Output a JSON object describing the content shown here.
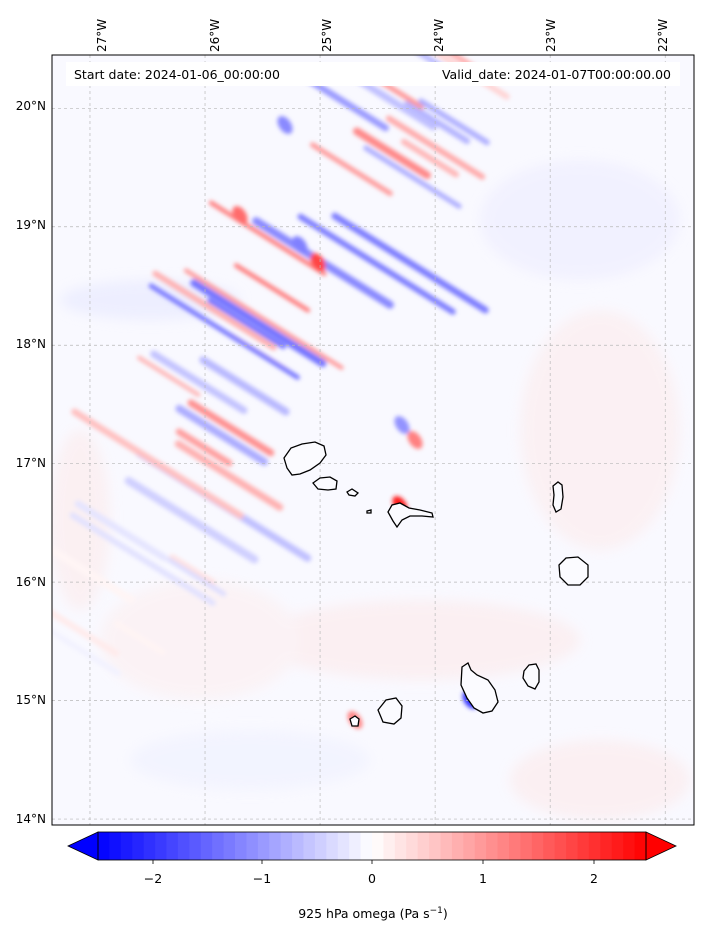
{
  "header": {
    "start_date": "Start date: 2024-01-06_00:00:00",
    "valid_date": "Valid_date: 2024-01-07T00:00:00.00"
  },
  "axes": {
    "lon_ticks": [
      "27°W",
      "26°W",
      "25°W",
      "24°W",
      "23°W",
      "22°W"
    ],
    "lat_ticks": [
      "20°N",
      "19°N",
      "18°N",
      "17°N",
      "16°N",
      "15°N",
      "14°N"
    ]
  },
  "colorbar": {
    "ticks": [
      "−2",
      "−1",
      "0",
      "1",
      "2"
    ],
    "label_main": "925 hPa omega (Pa s",
    "label_exp": "−1",
    "label_tail": ")",
    "range": [
      -2.6,
      2.6
    ],
    "colormap": "bwr",
    "low_color": "#0000ff",
    "mid_color": "#ffffff",
    "high_color": "#ff0000"
  },
  "chart_data": {
    "type": "heatmap",
    "variable": "925 hPa omega",
    "units": "Pa s−1",
    "lon_range": [
      -27.33,
      -21.75
    ],
    "lat_range": [
      13.95,
      20.45
    ],
    "lon_ticks": [
      -27,
      -26,
      -25,
      -24,
      -23,
      -22
    ],
    "lat_ticks": [
      20,
      19,
      18,
      17,
      16,
      15,
      14
    ],
    "value_range": [
      -2.6,
      2.6
    ],
    "grid": true
  }
}
